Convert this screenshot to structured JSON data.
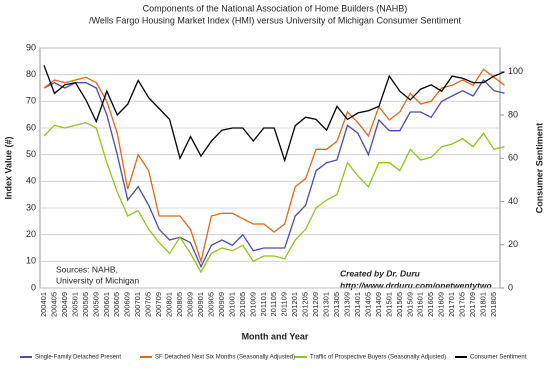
{
  "chart_data": {
    "type": "line",
    "title": "Components of the National Association of Home Builders (NAHB)",
    "subtitle": "/Wells Fargo Housing Market Index (HMI) versus University of Michigan Consumer Sentiment",
    "x_label": "Month and Year",
    "y_label": "Index Value (#)",
    "y2_label": "Consumer Sentiment",
    "annotations": [
      "Sources: NAHB,",
      "University of Michigan",
      "Created by Dr. Duru",
      "http://www.drduru.com/onetwentytwo"
    ],
    "categories": [
      "200401",
      "200405",
      "200409",
      "200501",
      "200505",
      "200509",
      "200601",
      "200605",
      "200609",
      "200701",
      "200705",
      "200709",
      "200801",
      "200805",
      "200809",
      "200901",
      "200905",
      "200909",
      "201001",
      "201005",
      "201009",
      "201101",
      "201105",
      "201109",
      "201201",
      "201205",
      "201209",
      "201301",
      "201305",
      "201309",
      "201401",
      "201405",
      "201409",
      "201501",
      "201505",
      "201509",
      "201601",
      "201605",
      "201609",
      "201701",
      "201705",
      "201709",
      "201801",
      "201805",
      null
    ],
    "series": [
      {
        "name": "Single-Family Detached Present",
        "color": "#4b4ba8",
        "values": [
          75,
          77,
          75,
          77,
          77,
          75,
          65,
          50,
          33,
          38,
          31,
          22,
          18,
          19,
          17,
          8,
          16,
          18,
          16,
          20,
          14,
          15,
          15,
          15,
          27,
          31,
          44,
          47,
          48,
          61,
          58,
          50,
          63,
          59,
          59,
          66,
          66,
          64,
          70,
          72,
          74,
          72,
          78,
          74,
          73
        ]
      },
      {
        "name": "SF Detached Next Six Months (Seasonally Adjusted)",
        "color": "#e0671b",
        "values": [
          75,
          78,
          77,
          78,
          79,
          77,
          70,
          58,
          37,
          50,
          44,
          27,
          27,
          27,
          22,
          10,
          27,
          28,
          28,
          26,
          24,
          24,
          21,
          24,
          38,
          41,
          52,
          52,
          55,
          66,
          62,
          57,
          68,
          63,
          66,
          73,
          69,
          70,
          75,
          76,
          78,
          76,
          82,
          79,
          76
        ]
      },
      {
        "name": "Traffic of Prospective Buyers (Seasonally Adjusted)",
        "color": "#8fc31f",
        "values": [
          57,
          61,
          60,
          61,
          62,
          60,
          47,
          36,
          27,
          29,
          22,
          17,
          13,
          19,
          13,
          6,
          13,
          15,
          14,
          16,
          10,
          12,
          12,
          11,
          18,
          22,
          30,
          33,
          35,
          47,
          42,
          38,
          47,
          47,
          44,
          52,
          48,
          49,
          53,
          54,
          56,
          53,
          58,
          52,
          53
        ]
      },
      {
        "name": "Consumer Sentiment",
        "color": "#000000",
        "axis": "y2",
        "values": [
          103,
          90,
          94,
          95,
          87,
          77,
          91,
          80,
          85,
          96,
          88,
          83,
          78,
          60,
          70,
          61,
          68,
          73,
          74,
          74,
          68,
          74,
          74,
          59,
          75,
          79,
          78,
          73,
          84,
          78,
          81,
          82,
          84,
          98,
          91,
          87,
          92,
          94,
          91,
          98,
          97,
          95,
          95,
          98,
          100
        ]
      }
    ],
    "ylim": [
      0,
      90
    ],
    "yticks": [
      0,
      10,
      20,
      30,
      40,
      50,
      60,
      70,
      80,
      90
    ],
    "y2lim": [
      0,
      111
    ],
    "y2ticks": [
      0,
      20,
      40,
      60,
      80,
      100
    ],
    "grid": true,
    "legend": "bottom"
  }
}
